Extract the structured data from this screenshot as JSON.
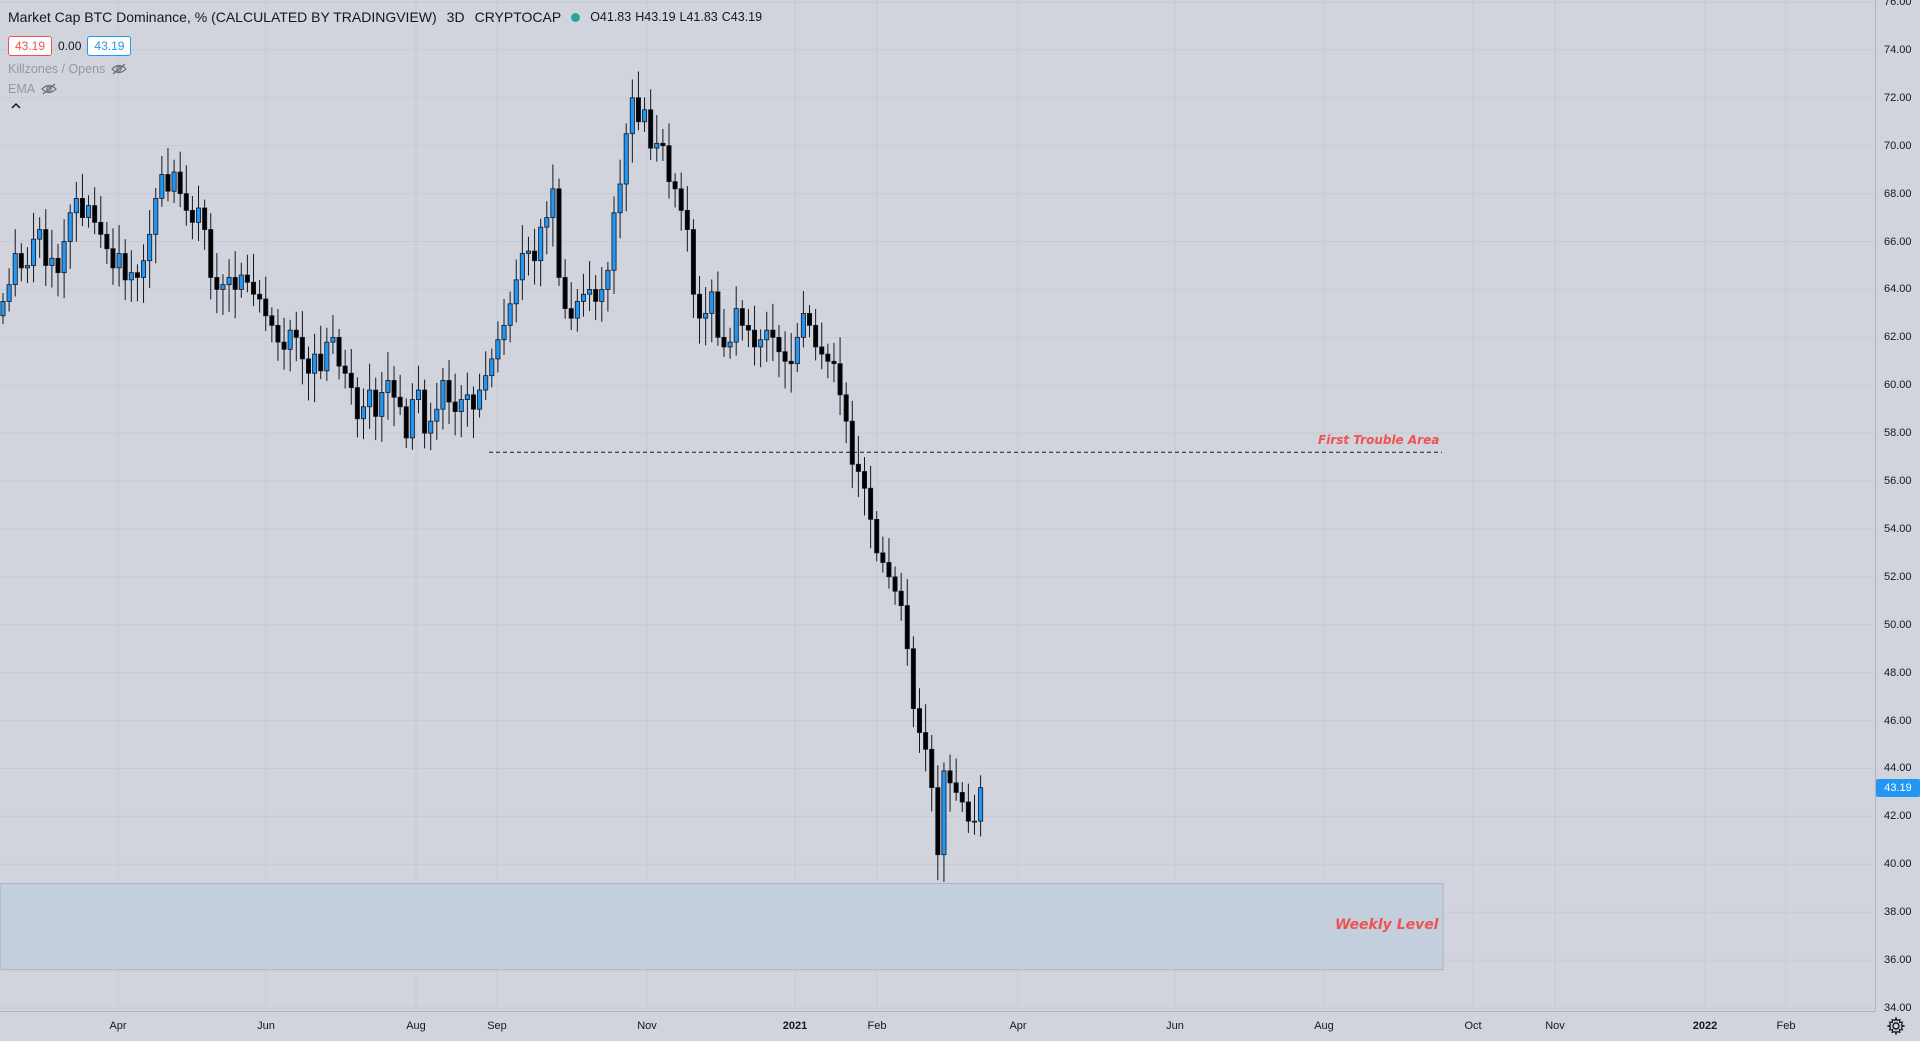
{
  "legend": {
    "title": "Market Cap BTC Dominance, % (CALCULATED BY TRADINGVIEW)",
    "interval": "3D",
    "exchange": "CRYPTOCAP",
    "open_label": "O41.83",
    "high_label": "H43.19",
    "low_label": "L41.83",
    "close_label": "C43.19",
    "badge_bid": "43.19",
    "badge_spread": "0.00",
    "badge_ask": "43.19",
    "indicators": [
      "Killzones / Opens",
      "EMA"
    ]
  },
  "colors": {
    "up": "#2196f3",
    "down": "#000000",
    "annotation": "#ef5350",
    "zone": "#c3cfdc",
    "zone_border": "#aab4c3",
    "last_price": "#2196f3"
  },
  "icons": {
    "visibility": "eye-off-icon",
    "collapse": "chevron-up-icon",
    "settings": "gear-icon"
  },
  "price_axis": {
    "ticks": [
      "76.00",
      "74.00",
      "72.00",
      "70.00",
      "68.00",
      "66.00",
      "64.00",
      "62.00",
      "60.00",
      "58.00",
      "56.00",
      "54.00",
      "52.00",
      "50.00",
      "48.00",
      "46.00",
      "44.00",
      "42.00",
      "40.00",
      "38.00",
      "36.00",
      "34.00"
    ],
    "current_price": "43.19"
  },
  "time_axis": {
    "ticks": [
      {
        "label": "Apr",
        "bold": false
      },
      {
        "label": "Jun",
        "bold": false
      },
      {
        "label": "Aug",
        "bold": false
      },
      {
        "label": "Sep",
        "bold": false
      },
      {
        "label": "Nov",
        "bold": false
      },
      {
        "label": "2021",
        "bold": true
      },
      {
        "label": "Feb",
        "bold": false
      },
      {
        "label": "Apr",
        "bold": false
      },
      {
        "label": "Jun",
        "bold": false
      },
      {
        "label": "Aug",
        "bold": false
      },
      {
        "label": "Oct",
        "bold": false
      },
      {
        "label": "Nov",
        "bold": false
      },
      {
        "label": "2022",
        "bold": true
      },
      {
        "label": "Feb",
        "bold": false
      }
    ]
  },
  "annotations": {
    "trouble_label": "First Trouble Area",
    "trouble_level": 57.2,
    "weekly_label": "Weekly Level",
    "weekly_zone": [
      35.6,
      39.2
    ]
  },
  "chart_data": {
    "type": "candlestick",
    "interval": "3D",
    "ylim": [
      34,
      76
    ],
    "note_close": [
      63.5,
      64.2,
      65.5,
      64.9,
      65.0,
      66.1,
      66.5,
      65.0,
      65.3,
      64.7,
      66.0,
      67.2,
      67.8,
      67.0,
      67.5,
      66.8,
      66.3,
      65.7,
      64.9,
      65.5,
      64.4,
      64.7,
      64.5,
      65.2,
      66.3,
      67.8,
      68.8,
      68.1,
      68.9,
      68.0,
      67.3,
      66.8,
      67.4,
      66.5,
      64.5,
      64.0,
      64.2,
      64.5,
      64.0,
      64.6,
      64.3,
      63.8,
      63.6,
      62.9,
      62.5,
      61.8,
      61.5,
      62.3,
      62.0,
      61.1,
      60.5,
      61.3,
      60.6,
      61.8,
      62.0,
      60.8,
      60.5,
      59.9,
      58.6,
      59.1,
      59.8,
      58.7,
      59.7,
      60.2,
      59.5,
      59.1,
      57.8,
      59.4,
      59.8,
      58.0,
      58.5,
      59.0,
      60.2,
      59.3,
      58.9,
      59.4,
      59.6,
      59.0,
      59.8,
      60.4,
      61.1,
      61.9,
      62.5,
      63.4,
      64.4,
      65.5,
      65.6,
      65.2,
      66.6,
      67.0,
      68.2,
      64.5,
      63.2,
      62.8,
      63.5,
      63.8,
      64.0,
      63.5,
      64.0,
      64.8,
      67.2,
      68.4,
      70.5,
      72.0,
      71.0,
      71.5,
      69.9,
      70.1,
      70.0,
      68.5,
      68.2,
      67.3,
      66.5,
      63.8,
      62.8,
      63.0,
      63.9,
      62.0,
      61.6,
      61.8,
      63.2,
      62.5,
      62.3,
      61.6,
      61.9,
      62.3,
      62.0,
      61.4,
      61.0,
      60.9,
      62.0,
      63.0,
      62.5,
      61.6,
      61.3,
      61.0,
      60.9,
      59.6,
      58.5,
      56.7,
      56.4,
      55.7,
      54.4,
      53.0,
      52.6,
      52.0,
      51.4,
      50.8,
      49.0,
      46.5,
      45.5,
      44.8,
      43.2,
      40.4,
      43.9,
      43.4,
      43.0,
      42.6,
      41.8,
      41.8,
      43.2
    ]
  }
}
